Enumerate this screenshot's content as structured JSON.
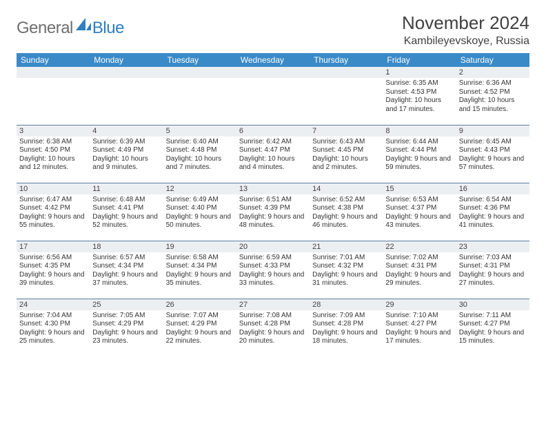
{
  "brand": {
    "left": "General",
    "right": "Blue"
  },
  "title": "November 2024",
  "location": "Kambileyevskoye, Russia",
  "colors": {
    "header_bg": "#3a8ac8",
    "header_text": "#ffffff",
    "daybar_bg": "#eceff2",
    "rule": "#5a7ca0",
    "brand_gray": "#6f6f6f",
    "brand_blue": "#2f7fc1",
    "text": "#333333",
    "page_bg": "#ffffff"
  },
  "weekdays": [
    "Sunday",
    "Monday",
    "Tuesday",
    "Wednesday",
    "Thursday",
    "Friday",
    "Saturday"
  ],
  "weeks": [
    [
      null,
      null,
      null,
      null,
      null,
      {
        "n": "1",
        "sunrise": "Sunrise: 6:35 AM",
        "sunset": "Sunset: 4:53 PM",
        "daylight": "Daylight: 10 hours and 17 minutes."
      },
      {
        "n": "2",
        "sunrise": "Sunrise: 6:36 AM",
        "sunset": "Sunset: 4:52 PM",
        "daylight": "Daylight: 10 hours and 15 minutes."
      }
    ],
    [
      {
        "n": "3",
        "sunrise": "Sunrise: 6:38 AM",
        "sunset": "Sunset: 4:50 PM",
        "daylight": "Daylight: 10 hours and 12 minutes."
      },
      {
        "n": "4",
        "sunrise": "Sunrise: 6:39 AM",
        "sunset": "Sunset: 4:49 PM",
        "daylight": "Daylight: 10 hours and 9 minutes."
      },
      {
        "n": "5",
        "sunrise": "Sunrise: 6:40 AM",
        "sunset": "Sunset: 4:48 PM",
        "daylight": "Daylight: 10 hours and 7 minutes."
      },
      {
        "n": "6",
        "sunrise": "Sunrise: 6:42 AM",
        "sunset": "Sunset: 4:47 PM",
        "daylight": "Daylight: 10 hours and 4 minutes."
      },
      {
        "n": "7",
        "sunrise": "Sunrise: 6:43 AM",
        "sunset": "Sunset: 4:45 PM",
        "daylight": "Daylight: 10 hours and 2 minutes."
      },
      {
        "n": "8",
        "sunrise": "Sunrise: 6:44 AM",
        "sunset": "Sunset: 4:44 PM",
        "daylight": "Daylight: 9 hours and 59 minutes."
      },
      {
        "n": "9",
        "sunrise": "Sunrise: 6:45 AM",
        "sunset": "Sunset: 4:43 PM",
        "daylight": "Daylight: 9 hours and 57 minutes."
      }
    ],
    [
      {
        "n": "10",
        "sunrise": "Sunrise: 6:47 AM",
        "sunset": "Sunset: 4:42 PM",
        "daylight": "Daylight: 9 hours and 55 minutes."
      },
      {
        "n": "11",
        "sunrise": "Sunrise: 6:48 AM",
        "sunset": "Sunset: 4:41 PM",
        "daylight": "Daylight: 9 hours and 52 minutes."
      },
      {
        "n": "12",
        "sunrise": "Sunrise: 6:49 AM",
        "sunset": "Sunset: 4:40 PM",
        "daylight": "Daylight: 9 hours and 50 minutes."
      },
      {
        "n": "13",
        "sunrise": "Sunrise: 6:51 AM",
        "sunset": "Sunset: 4:39 PM",
        "daylight": "Daylight: 9 hours and 48 minutes."
      },
      {
        "n": "14",
        "sunrise": "Sunrise: 6:52 AM",
        "sunset": "Sunset: 4:38 PM",
        "daylight": "Daylight: 9 hours and 46 minutes."
      },
      {
        "n": "15",
        "sunrise": "Sunrise: 6:53 AM",
        "sunset": "Sunset: 4:37 PM",
        "daylight": "Daylight: 9 hours and 43 minutes."
      },
      {
        "n": "16",
        "sunrise": "Sunrise: 6:54 AM",
        "sunset": "Sunset: 4:36 PM",
        "daylight": "Daylight: 9 hours and 41 minutes."
      }
    ],
    [
      {
        "n": "17",
        "sunrise": "Sunrise: 6:56 AM",
        "sunset": "Sunset: 4:35 PM",
        "daylight": "Daylight: 9 hours and 39 minutes."
      },
      {
        "n": "18",
        "sunrise": "Sunrise: 6:57 AM",
        "sunset": "Sunset: 4:34 PM",
        "daylight": "Daylight: 9 hours and 37 minutes."
      },
      {
        "n": "19",
        "sunrise": "Sunrise: 6:58 AM",
        "sunset": "Sunset: 4:34 PM",
        "daylight": "Daylight: 9 hours and 35 minutes."
      },
      {
        "n": "20",
        "sunrise": "Sunrise: 6:59 AM",
        "sunset": "Sunset: 4:33 PM",
        "daylight": "Daylight: 9 hours and 33 minutes."
      },
      {
        "n": "21",
        "sunrise": "Sunrise: 7:01 AM",
        "sunset": "Sunset: 4:32 PM",
        "daylight": "Daylight: 9 hours and 31 minutes."
      },
      {
        "n": "22",
        "sunrise": "Sunrise: 7:02 AM",
        "sunset": "Sunset: 4:31 PM",
        "daylight": "Daylight: 9 hours and 29 minutes."
      },
      {
        "n": "23",
        "sunrise": "Sunrise: 7:03 AM",
        "sunset": "Sunset: 4:31 PM",
        "daylight": "Daylight: 9 hours and 27 minutes."
      }
    ],
    [
      {
        "n": "24",
        "sunrise": "Sunrise: 7:04 AM",
        "sunset": "Sunset: 4:30 PM",
        "daylight": "Daylight: 9 hours and 25 minutes."
      },
      {
        "n": "25",
        "sunrise": "Sunrise: 7:05 AM",
        "sunset": "Sunset: 4:29 PM",
        "daylight": "Daylight: 9 hours and 23 minutes."
      },
      {
        "n": "26",
        "sunrise": "Sunrise: 7:07 AM",
        "sunset": "Sunset: 4:29 PM",
        "daylight": "Daylight: 9 hours and 22 minutes."
      },
      {
        "n": "27",
        "sunrise": "Sunrise: 7:08 AM",
        "sunset": "Sunset: 4:28 PM",
        "daylight": "Daylight: 9 hours and 20 minutes."
      },
      {
        "n": "28",
        "sunrise": "Sunrise: 7:09 AM",
        "sunset": "Sunset: 4:28 PM",
        "daylight": "Daylight: 9 hours and 18 minutes."
      },
      {
        "n": "29",
        "sunrise": "Sunrise: 7:10 AM",
        "sunset": "Sunset: 4:27 PM",
        "daylight": "Daylight: 9 hours and 17 minutes."
      },
      {
        "n": "30",
        "sunrise": "Sunrise: 7:11 AM",
        "sunset": "Sunset: 4:27 PM",
        "daylight": "Daylight: 9 hours and 15 minutes."
      }
    ]
  ]
}
